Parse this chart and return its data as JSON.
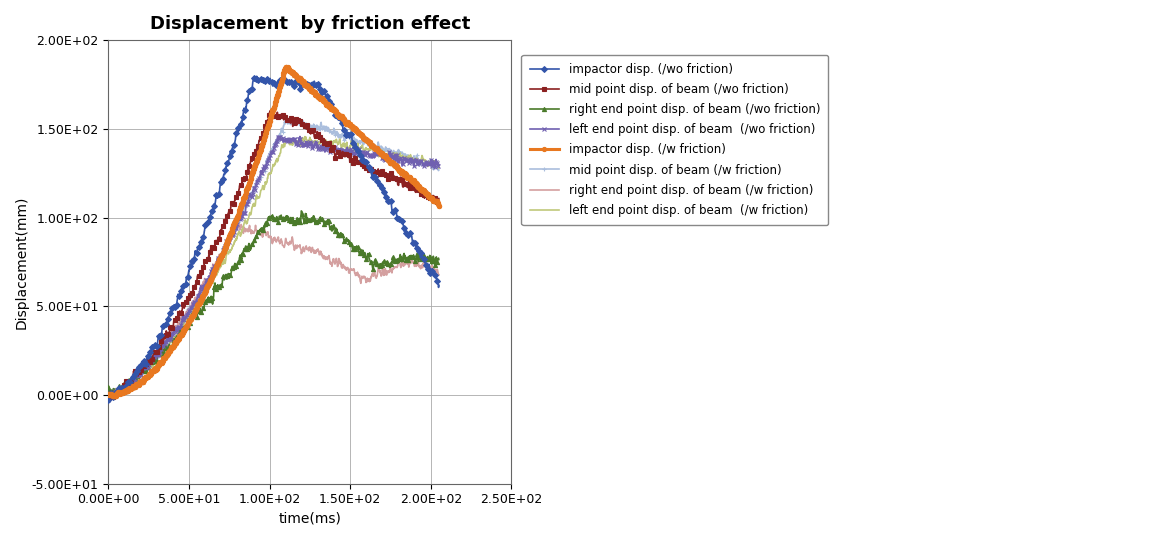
{
  "title": "Displacement  by friction effect",
  "xlabel": "time(ms)",
  "ylabel": "Displacement(mm)",
  "xlim": [
    0,
    250
  ],
  "ylim": [
    -50,
    200
  ],
  "xticks": [
    0,
    50,
    100,
    150,
    200,
    250
  ],
  "yticks": [
    -50,
    0,
    50,
    100,
    150,
    200
  ],
  "xtick_labels": [
    "0.00E+00",
    "5.00E+01",
    "1.00E+02",
    "1.50E+02",
    "2.00E+02",
    "2.50E+02"
  ],
  "ytick_labels": [
    "-5.00E+01",
    "0.00E+00",
    "5.00E+01",
    "1.00E+02",
    "1.50E+02",
    "2.00E+02"
  ],
  "series": [
    {
      "label": "impactor disp. (/wo friction)",
      "color": "#3355aa",
      "marker": "D",
      "markersize": 3,
      "linewidth": 1.2,
      "zorder": 5,
      "markevery": 8
    },
    {
      "label": "mid point disp. of beam (/wo friction)",
      "color": "#8b2020",
      "marker": "s",
      "markersize": 3,
      "linewidth": 1.2,
      "zorder": 4,
      "markevery": 8
    },
    {
      "label": "right end point disp. of beam (/wo friction)",
      "color": "#4a7a2a",
      "marker": "^",
      "markersize": 3,
      "linewidth": 1.2,
      "zorder": 3,
      "markevery": 8
    },
    {
      "label": "left end point disp. of beam  (/wo friction)",
      "color": "#7060b0",
      "marker": "x",
      "markersize": 3,
      "linewidth": 1.2,
      "zorder": 3,
      "markevery": 4
    },
    {
      "label": "impactor disp. (/w friction)",
      "color": "#e87820",
      "marker": "o",
      "markersize": 3,
      "linewidth": 2.2,
      "zorder": 6,
      "markevery": 0
    },
    {
      "label": "mid point disp. of beam (/w friction)",
      "color": "#aabedd",
      "marker": "+",
      "markersize": 3,
      "linewidth": 1.2,
      "zorder": 2,
      "markevery": 8
    },
    {
      "label": "right end point disp. of beam (/w friction)",
      "color": "#d4a0a0",
      "marker": null,
      "markersize": 0,
      "linewidth": 1.2,
      "zorder": 2,
      "markevery": 0
    },
    {
      "label": "left end point disp. of beam  (/w friction)",
      "color": "#c0c87a",
      "marker": null,
      "markersize": 0,
      "linewidth": 1.2,
      "zorder": 2,
      "markevery": 0
    }
  ]
}
